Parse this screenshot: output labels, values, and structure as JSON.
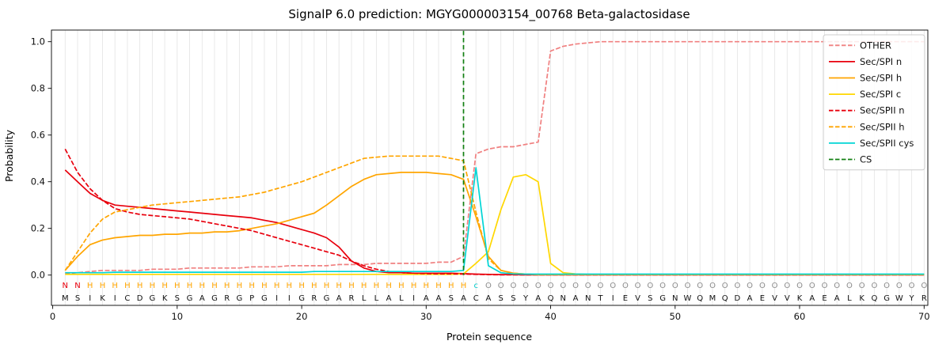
{
  "header": {
    "tool": "SignalP 6.0",
    "protein_id": "MGYG000003154_00768",
    "protein_name": "Beta-galactosidase"
  },
  "chart_data": {
    "type": "line",
    "title": "SignalP 6.0 prediction: MGYG000003154_00768 Beta-galactosidase",
    "xlabel": "Protein sequence",
    "ylabel": "Probability",
    "x_range": [
      1,
      70
    ],
    "xlim": [
      -0.1,
      70.3
    ],
    "ylim": [
      -0.13,
      1.05
    ],
    "x_ticks": [
      0,
      10,
      20,
      30,
      40,
      50,
      60,
      70
    ],
    "y_ticks": [
      0,
      0.2,
      0.4,
      0.6,
      0.8,
      1
    ],
    "grid": "vertical gridline at every residue position",
    "legend_position": "upper right",
    "series": [
      {
        "name": "OTHER",
        "color": "#f08080",
        "dash": "dashed",
        "values": [
          0.005,
          0.01,
          0.015,
          0.02,
          0.02,
          0.02,
          0.02,
          0.025,
          0.025,
          0.025,
          0.03,
          0.03,
          0.03,
          0.03,
          0.03,
          0.035,
          0.035,
          0.035,
          0.04,
          0.04,
          0.04,
          0.04,
          0.045,
          0.045,
          0.045,
          0.05,
          0.05,
          0.05,
          0.05,
          0.05,
          0.055,
          0.055,
          0.08,
          0.52,
          0.54,
          0.55,
          0.55,
          0.56,
          0.57,
          0.96,
          0.98,
          0.99,
          0.995,
          1.0,
          1.0,
          1.0,
          1.0,
          1.0,
          1.0,
          1.0,
          1.0,
          1.0,
          1.0,
          1.0,
          1.0,
          1.0,
          1.0,
          1.0,
          1.0,
          1.0,
          1.0,
          1.0,
          1.0,
          1.0,
          1.0,
          1.0,
          1.0,
          1.0,
          1.0,
          1.0
        ]
      },
      {
        "name": "Sec/SPI n",
        "color": "#e8000d",
        "dash": "solid",
        "values": [
          0.45,
          0.4,
          0.35,
          0.32,
          0.3,
          0.295,
          0.29,
          0.285,
          0.28,
          0.275,
          0.27,
          0.265,
          0.26,
          0.255,
          0.25,
          0.245,
          0.235,
          0.225,
          0.21,
          0.195,
          0.18,
          0.16,
          0.12,
          0.06,
          0.03,
          0.015,
          0.01,
          0.01,
          0.008,
          0.008,
          0.008,
          0.008,
          0.006,
          0.004,
          0.003,
          0.002,
          0.002,
          0.001,
          0.001,
          0.001,
          0.001,
          0.001,
          0.001,
          0.001,
          0.001,
          0.001,
          0.001,
          0.001,
          0.001,
          0.001,
          0.001,
          0.001,
          0.001,
          0.001,
          0.001,
          0.001,
          0.001,
          0.001,
          0.001,
          0.001,
          0.001,
          0.001,
          0.001,
          0.001,
          0.001,
          0.001,
          0.001,
          0.001,
          0.001,
          0.001
        ]
      },
      {
        "name": "Sec/SPI h",
        "color": "#ffa500",
        "dash": "solid",
        "values": [
          0.02,
          0.08,
          0.13,
          0.15,
          0.16,
          0.165,
          0.17,
          0.17,
          0.175,
          0.175,
          0.18,
          0.18,
          0.185,
          0.185,
          0.19,
          0.2,
          0.21,
          0.22,
          0.235,
          0.25,
          0.265,
          0.3,
          0.34,
          0.38,
          0.41,
          0.43,
          0.435,
          0.44,
          0.44,
          0.44,
          0.435,
          0.43,
          0.41,
          0.25,
          0.08,
          0.02,
          0.008,
          0.004,
          0.002,
          0.002,
          0.002,
          0.002,
          0.002,
          0.002,
          0.002,
          0.002,
          0.002,
          0.002,
          0.002,
          0.002,
          0.002,
          0.002,
          0.002,
          0.002,
          0.002,
          0.002,
          0.002,
          0.002,
          0.002,
          0.002,
          0.002,
          0.002,
          0.002,
          0.002,
          0.002,
          0.002,
          0.002,
          0.002,
          0.002,
          0.002
        ]
      },
      {
        "name": "Sec/SPI c",
        "color": "#ffd700",
        "dash": "solid",
        "values": [
          0.003,
          0.003,
          0.003,
          0.003,
          0.003,
          0.003,
          0.003,
          0.003,
          0.003,
          0.003,
          0.003,
          0.003,
          0.003,
          0.003,
          0.003,
          0.003,
          0.003,
          0.003,
          0.003,
          0.003,
          0.003,
          0.003,
          0.003,
          0.003,
          0.003,
          0.003,
          0.003,
          0.003,
          0.003,
          0.003,
          0.003,
          0.003,
          0.005,
          0.05,
          0.1,
          0.28,
          0.42,
          0.43,
          0.4,
          0.05,
          0.01,
          0.005,
          0.003,
          0.003,
          0.003,
          0.003,
          0.003,
          0.003,
          0.003,
          0.003,
          0.003,
          0.003,
          0.003,
          0.003,
          0.003,
          0.003,
          0.003,
          0.003,
          0.003,
          0.003,
          0.003,
          0.003,
          0.003,
          0.003,
          0.003,
          0.003,
          0.003,
          0.003,
          0.003,
          0.003
        ]
      },
      {
        "name": "Sec/SPII n",
        "color": "#e8000d",
        "dash": "dashed",
        "values": [
          0.54,
          0.44,
          0.37,
          0.32,
          0.285,
          0.27,
          0.26,
          0.255,
          0.25,
          0.245,
          0.24,
          0.23,
          0.22,
          0.21,
          0.2,
          0.19,
          0.175,
          0.16,
          0.145,
          0.13,
          0.115,
          0.1,
          0.085,
          0.06,
          0.04,
          0.025,
          0.015,
          0.01,
          0.008,
          0.006,
          0.005,
          0.005,
          0.004,
          0.003,
          0.002,
          0.001,
          0.001,
          0.001,
          0.001,
          0.001,
          0.001,
          0.001,
          0.001,
          0.001,
          0.001,
          0.001,
          0.001,
          0.001,
          0.001,
          0.001,
          0.001,
          0.001,
          0.001,
          0.001,
          0.001,
          0.001,
          0.001,
          0.001,
          0.001,
          0.001,
          0.001,
          0.001,
          0.001,
          0.001,
          0.001,
          0.001,
          0.001,
          0.001,
          0.001,
          0.001
        ]
      },
      {
        "name": "Sec/SPII h",
        "color": "#ffa500",
        "dash": "dashed",
        "values": [
          0.02,
          0.1,
          0.18,
          0.24,
          0.27,
          0.28,
          0.29,
          0.3,
          0.305,
          0.31,
          0.315,
          0.32,
          0.325,
          0.33,
          0.335,
          0.345,
          0.355,
          0.37,
          0.385,
          0.4,
          0.42,
          0.44,
          0.46,
          0.48,
          0.5,
          0.505,
          0.51,
          0.51,
          0.51,
          0.51,
          0.51,
          0.5,
          0.49,
          0.27,
          0.07,
          0.02,
          0.008,
          0.004,
          0.002,
          0.002,
          0.002,
          0.002,
          0.002,
          0.002,
          0.002,
          0.002,
          0.002,
          0.002,
          0.002,
          0.002,
          0.002,
          0.002,
          0.002,
          0.002,
          0.002,
          0.002,
          0.002,
          0.002,
          0.002,
          0.002,
          0.002,
          0.002,
          0.002,
          0.002,
          0.002,
          0.002,
          0.002,
          0.002,
          0.002,
          0.002
        ]
      },
      {
        "name": "Sec/SPII cys",
        "color": "#00d5d5",
        "dash": "solid",
        "values": [
          0.01,
          0.01,
          0.01,
          0.01,
          0.012,
          0.012,
          0.012,
          0.012,
          0.012,
          0.012,
          0.012,
          0.012,
          0.012,
          0.012,
          0.012,
          0.012,
          0.012,
          0.012,
          0.012,
          0.012,
          0.015,
          0.015,
          0.015,
          0.015,
          0.015,
          0.015,
          0.015,
          0.015,
          0.015,
          0.015,
          0.015,
          0.015,
          0.02,
          0.46,
          0.04,
          0.01,
          0.005,
          0.004,
          0.004,
          0.004,
          0.004,
          0.004,
          0.004,
          0.004,
          0.004,
          0.004,
          0.004,
          0.004,
          0.004,
          0.004,
          0.004,
          0.004,
          0.004,
          0.004,
          0.004,
          0.004,
          0.004,
          0.004,
          0.004,
          0.004,
          0.004,
          0.004,
          0.004,
          0.004,
          0.004,
          0.004,
          0.004,
          0.004,
          0.004,
          0.004
        ]
      }
    ],
    "cs": {
      "name": "CS",
      "x": 33,
      "color": "#128012",
      "dash": "dashed"
    },
    "sequence": "MSIKICDGKSGAGRGPGIIGRGARLLALIAASACASSYAQNANTIEVSGNWQMQDAEVVKAEALKQGWYR",
    "annotation": "NNHHHHHHHHHHHHHHHHHHHHHHHHHHHHHHHcOOOOOOOOOOOOOOOOOOOOOOOOOOOOOOOOOOOO",
    "annotation_colors": {
      "N": "#e8000d",
      "H": "#ffa500",
      "c": "#00cccc",
      "O": "#8c8c8c"
    },
    "style": {
      "grid_color": "#e6e6e6",
      "spine_color": "#000000",
      "legend_border": "#cccccc",
      "text_color": "#111111"
    }
  }
}
